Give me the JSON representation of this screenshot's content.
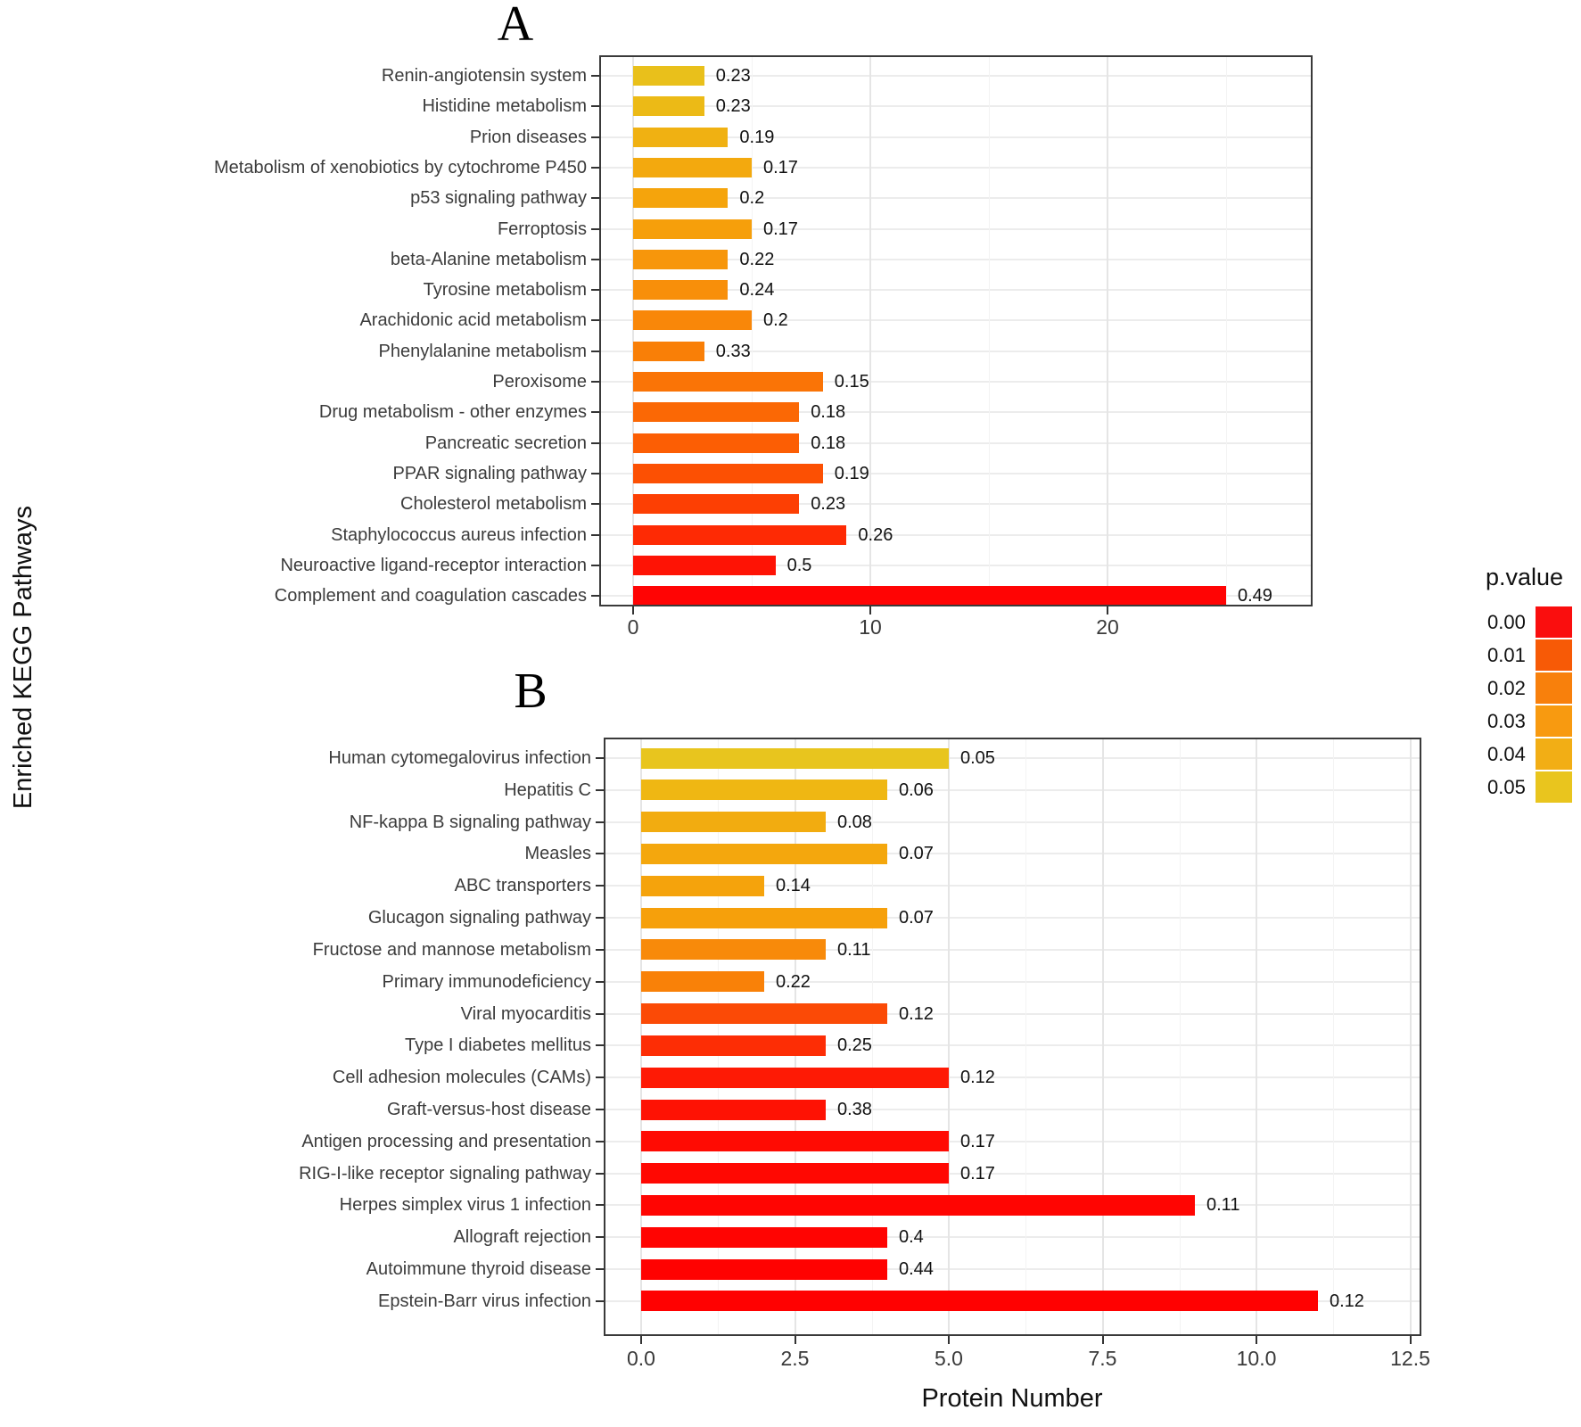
{
  "figure": {
    "panel_a_label": "A",
    "panel_b_label": "B",
    "x_axis_title": "Protein Number",
    "y_axis_title": "Enriched KEGG Pathways"
  },
  "legend": {
    "title": "p.value",
    "entries": [
      {
        "label": "0.00",
        "color": "#FA0E0E"
      },
      {
        "label": "0.01",
        "color": "#F75A06"
      },
      {
        "label": "0.02",
        "color": "#F8800C"
      },
      {
        "label": "0.03",
        "color": "#F89A10"
      },
      {
        "label": "0.04",
        "color": "#F2AE15"
      },
      {
        "label": "0.05",
        "color": "#E9C51E"
      }
    ]
  },
  "chart_data": [
    {
      "type": "bar",
      "panel": "A",
      "orientation": "horizontal",
      "xlabel": "Protein Number",
      "ylabel": "Enriched KEGG Pathways",
      "xlim": [
        0,
        28.6
      ],
      "grid": true,
      "x_ticks": {
        "values": [
          0,
          10,
          20
        ],
        "labels": [
          "0",
          "10",
          "20"
        ]
      },
      "categories": [
        "Renin-angiotensin system",
        "Histidine metabolism",
        "Prion diseases",
        "Metabolism of xenobiotics by cytochrome P450",
        "p53 signaling pathway",
        "Ferroptosis",
        "beta-Alanine metabolism",
        "Tyrosine metabolism",
        "Arachidonic acid metabolism",
        "Phenylalanine metabolism",
        "Peroxisome",
        "Drug metabolism - other enzymes",
        "Pancreatic secretion",
        "PPAR signaling pathway",
        "Cholesterol metabolism",
        "Staphylococcus aureus infection",
        "Neuroactive ligand-receptor interaction",
        "Complement and coagulation cascades"
      ],
      "values": [
        3,
        3,
        4,
        5,
        4,
        5,
        4,
        4,
        5,
        3,
        8,
        7,
        7,
        8,
        7,
        9,
        6,
        25
      ],
      "bar_labels": [
        "0.23",
        "0.23",
        "0.19",
        "0.17",
        "0.2",
        "0.17",
        "0.22",
        "0.24",
        "0.2",
        "0.33",
        "0.15",
        "0.18",
        "0.18",
        "0.19",
        "0.23",
        "0.26",
        "0.5",
        "0.49"
      ],
      "bar_colors": [
        "#E9C01B",
        "#ECBA16",
        "#F0B112",
        "#F3A90E",
        "#F5A40C",
        "#F69F0B",
        "#F7960B",
        "#F88F0A",
        "#F98709",
        "#F97F07",
        "#FA7406",
        "#FB6805",
        "#FC5E04",
        "#FC5003",
        "#FD3F03",
        "#FE2A04",
        "#FE1305",
        "#FF0404"
      ]
    },
    {
      "type": "bar",
      "panel": "B",
      "orientation": "horizontal",
      "xlabel": "Protein Number",
      "ylabel": "Enriched KEGG Pathways",
      "xlim": [
        0,
        12.7
      ],
      "grid": true,
      "x_ticks": {
        "values": [
          0,
          2.5,
          5,
          7.5,
          10,
          12.5
        ],
        "labels": [
          "0.0",
          "2.5",
          "5.0",
          "7.5",
          "10.0",
          "12.5"
        ]
      },
      "categories": [
        "Human cytomegalovirus infection",
        "Hepatitis C",
        "NF-kappa B signaling pathway",
        "Measles",
        "ABC transporters",
        "Glucagon signaling pathway",
        "Fructose and mannose metabolism",
        "Primary immunodeficiency",
        "Viral myocarditis",
        "Type I diabetes mellitus",
        "Cell adhesion molecules (CAMs)",
        "Graft-versus-host disease",
        "Antigen processing and presentation",
        "RIG-I-like receptor signaling pathway",
        "Herpes simplex virus 1 infection",
        "Allograft rejection",
        "Autoimmune thyroid disease",
        "Epstein-Barr virus infection"
      ],
      "values": [
        5,
        4,
        3,
        4,
        2,
        4,
        3,
        2,
        4,
        3,
        5,
        3,
        5,
        5,
        9,
        4,
        4,
        11
      ],
      "bar_labels": [
        "0.05",
        "0.06",
        "0.08",
        "0.07",
        "0.14",
        "0.07",
        "0.11",
        "0.22",
        "0.12",
        "0.25",
        "0.12",
        "0.38",
        "0.17",
        "0.17",
        "0.11",
        "0.4",
        "0.44",
        "0.12"
      ],
      "bar_colors": [
        "#E8C51E",
        "#EFB713",
        "#F2AC10",
        "#F4A70D",
        "#F5A30C",
        "#F6A00B",
        "#F88A0A",
        "#F98108",
        "#FB4A06",
        "#FD2D05",
        "#FE1A05",
        "#FE1204",
        "#FF0B03",
        "#FF0802",
        "#FF0502",
        "#FF0402",
        "#FF0201",
        "#FF0101"
      ]
    }
  ]
}
